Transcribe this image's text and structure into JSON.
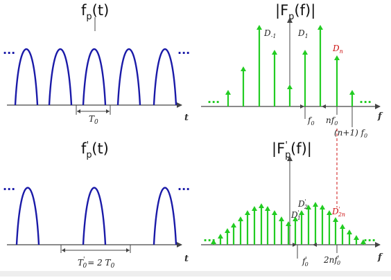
{
  "titles": {
    "top_left": {
      "main": "f",
      "sub": "p",
      "tail": "(t)"
    },
    "top_right": {
      "main": "|F",
      "sub": "p",
      "tail": "(f)|"
    },
    "bottom_left": {
      "main": "f",
      "sub": "p",
      "prime": "'",
      "tail": "(t)"
    },
    "bottom_right": {
      "main": "|F",
      "sub": "p",
      "prime": "'",
      "tail": "(f)|"
    }
  },
  "axis_names": {
    "time": "t",
    "freq": "f"
  },
  "ellipsis": "...",
  "top_left": {
    "period_label": "T",
    "period_sub": "0"
  },
  "bottom_left": {
    "period_label": "T",
    "period_prime": "'",
    "period_sub": "0",
    "period_rest": "= 2 T",
    "period_rest_sub": "0"
  },
  "top_right": {
    "label_dm1": {
      "main": "D",
      "sub": "-1"
    },
    "label_d1": {
      "main": "D",
      "sub": "1"
    },
    "label_dn": {
      "main": "D",
      "sub": "n"
    },
    "tick_f0": {
      "main": "f",
      "sub": "0"
    },
    "tick_nf0": {
      "pre": "n",
      "main": "f",
      "sub": "0"
    },
    "tick_n1f0": {
      "pre": "(n+1)",
      "main": " f",
      "sub": "0"
    }
  },
  "bottom_right": {
    "label_d2": {
      "main": "D",
      "prime": "'",
      "sub": "2"
    },
    "label_d1": {
      "main": "D",
      "prime": "'",
      "sub": "1"
    },
    "label_d2n": {
      "main": "D",
      "prime": "'",
      "sub": "2n"
    },
    "tick_f0": {
      "main": "f",
      "prime": "'",
      "sub": "0"
    },
    "tick_2nf0": {
      "pre": "2n",
      "main": "f",
      "prime": "'",
      "sub": "0"
    }
  },
  "colors": {
    "waveform": "#1a1aa8",
    "spectrum": "#22cc22",
    "highlight": "#cc1111",
    "axis": "#444444"
  },
  "chart_data": [
    {
      "type": "line",
      "description_shape": "half-sine pulse train",
      "pulses_visible": 5,
      "period": "T0",
      "ellipsis_both_sides": true
    },
    {
      "type": "bar",
      "shape": "line spectrum",
      "lines_visible": 9,
      "labels": [
        "D-1",
        "D1",
        "Dn"
      ]
    },
    {
      "type": "line",
      "shape": "half-sine pulse train",
      "pulses_visible": 3,
      "period": "T0' = 2 T0",
      "ellipsis_both_sides": true
    },
    {
      "type": "bar",
      "shape": "line spectrum",
      "lines_visible": 23,
      "labels": [
        "D'1",
        "D'2",
        "D'2n"
      ]
    }
  ]
}
